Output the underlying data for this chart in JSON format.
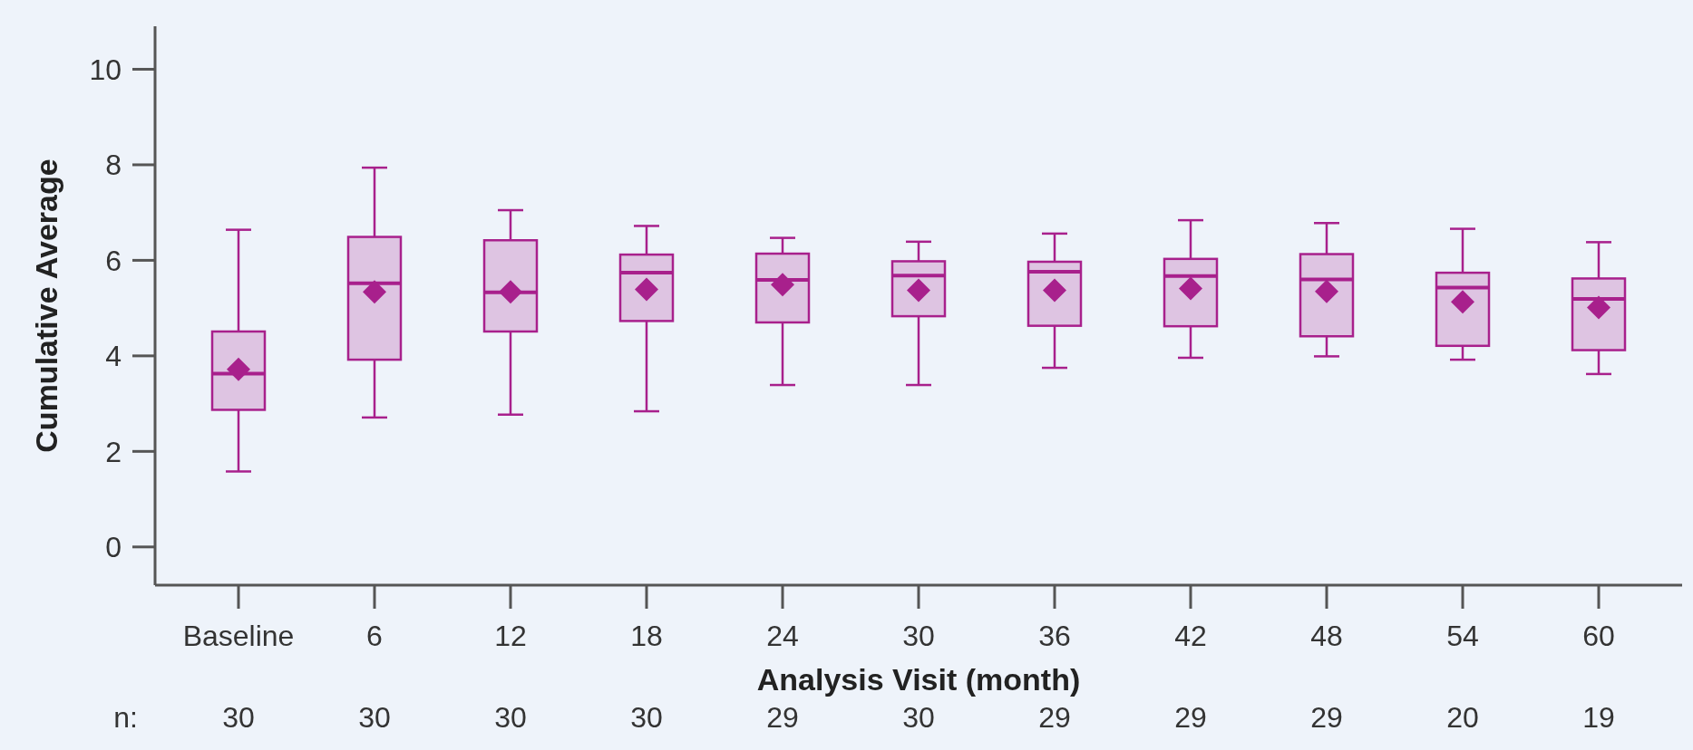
{
  "chart_data": {
    "type": "box",
    "xlabel": "Analysis Visit (month)",
    "ylabel": "Cumulative Average",
    "categories": [
      "Baseline",
      "6",
      "12",
      "18",
      "24",
      "30",
      "36",
      "42",
      "48",
      "54",
      "60"
    ],
    "series": [
      {
        "color": "#a8208c",
        "boxes": [
          {
            "low": 1.58,
            "q1": 2.87,
            "median": 3.63,
            "q3": 4.51,
            "high": 6.64,
            "mean": 3.72
          },
          {
            "low": 2.71,
            "q1": 3.92,
            "median": 5.52,
            "q3": 6.49,
            "high": 7.94,
            "mean": 5.34
          },
          {
            "low": 2.77,
            "q1": 4.51,
            "median": 5.33,
            "q3": 6.42,
            "high": 7.05,
            "mean": 5.34
          },
          {
            "low": 2.84,
            "q1": 4.73,
            "median": 5.74,
            "q3": 6.12,
            "high": 6.72,
            "mean": 5.39
          },
          {
            "low": 3.39,
            "q1": 4.7,
            "median": 5.59,
            "q3": 6.14,
            "high": 6.47,
            "mean": 5.49
          },
          {
            "low": 3.39,
            "q1": 4.83,
            "median": 5.68,
            "q3": 5.98,
            "high": 6.39,
            "mean": 5.37
          },
          {
            "low": 3.75,
            "q1": 4.63,
            "median": 5.76,
            "q3": 5.97,
            "high": 6.56,
            "mean": 5.37
          },
          {
            "low": 3.96,
            "q1": 4.62,
            "median": 5.67,
            "q3": 6.03,
            "high": 6.84,
            "mean": 5.41
          },
          {
            "low": 3.99,
            "q1": 4.41,
            "median": 5.6,
            "q3": 6.13,
            "high": 6.78,
            "mean": 5.35
          },
          {
            "low": 3.92,
            "q1": 4.21,
            "median": 5.43,
            "q3": 5.74,
            "high": 6.66,
            "mean": 5.13
          },
          {
            "low": 3.62,
            "q1": 4.12,
            "median": 5.19,
            "q3": 5.62,
            "high": 6.38,
            "mean": 5.01
          }
        ]
      }
    ],
    "ylim": [
      -0.8,
      10.9
    ],
    "yticks": [
      0,
      2,
      4,
      6,
      8,
      10
    ],
    "marker": "diamond",
    "annotations": [
      "n:",
      "30",
      "30",
      "30",
      "30",
      "29",
      "30",
      "29",
      "29",
      "29",
      "20",
      "19"
    ]
  }
}
